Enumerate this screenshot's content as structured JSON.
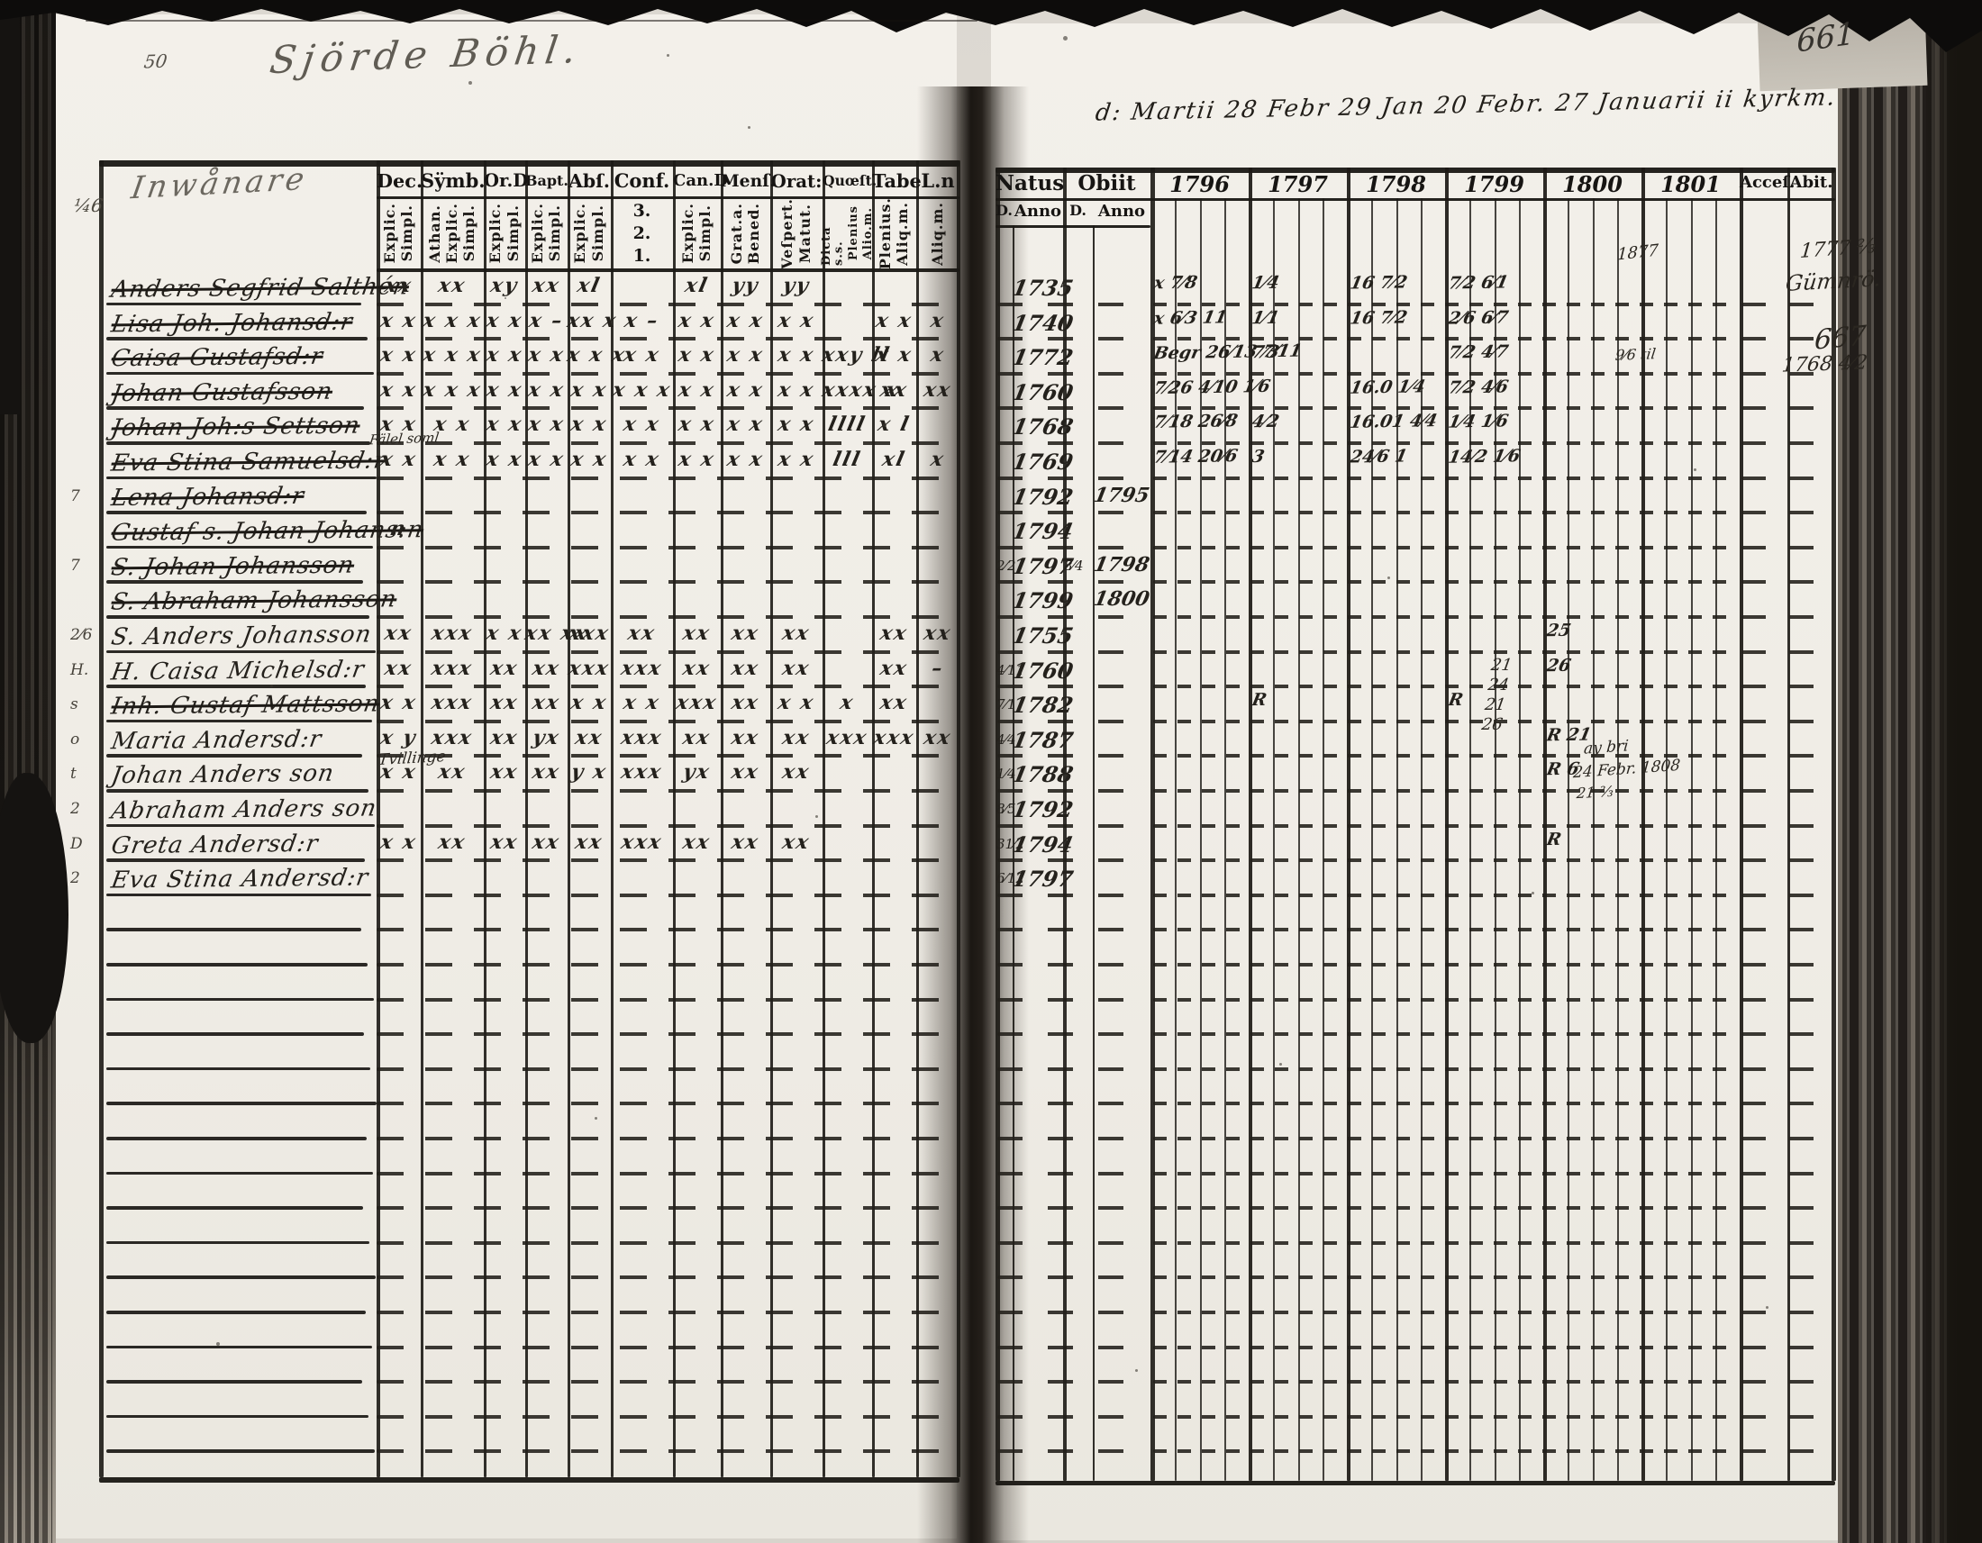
{
  "document": {
    "title_script": "Sjörde Böhl.",
    "page_number": "661",
    "years_note": "d: Martii 28 Febr 29 Jan 20 Febr. 27 Januarii ii kyrkm.",
    "name_column_script": "Inwånare"
  },
  "left_table": {
    "columns": [
      {
        "label": "Dec.",
        "sub": [
          "Explic.",
          "Simpl."
        ]
      },
      {
        "label": "Sÿmb.",
        "sub": [
          "Athan.",
          "Explic.",
          "Simpl."
        ]
      },
      {
        "label": "Or.D",
        "sub": [
          "Explic.",
          "Simpl."
        ]
      },
      {
        "label": "Bapt.",
        "sub": [
          "Explic.",
          "Simpl."
        ]
      },
      {
        "label": "Abſ.",
        "sub": [
          "Explic.",
          "Simpl."
        ]
      },
      {
        "label": "Conf.",
        "sub": [
          "3.",
          "2.",
          "1."
        ],
        "horizontal": true
      },
      {
        "label": "Can.D",
        "sub": [
          "Explic.",
          "Simpl."
        ]
      },
      {
        "label": "Menſ.",
        "sub": [
          "Grat.a.",
          "Bened."
        ]
      },
      {
        "label": "Orat:",
        "sub": [
          "Veſpert.",
          "Matut."
        ]
      },
      {
        "label": "Quœſt.",
        "sub": [
          "Dicta s.s.",
          "Plenius",
          "Alio.m."
        ]
      },
      {
        "label": "Tabe",
        "sub": [
          "Plenius.",
          "Aliq.m."
        ]
      },
      {
        "label": "L.n",
        "sub": [
          "Aliq.m."
        ]
      }
    ],
    "rows": [
      {
        "name": "Anders Segfrid Salthén",
        "struck": true,
        "tag": "",
        "marks": [
          "xx",
          "xx",
          "xy",
          "xx",
          "xl",
          "",
          "xl",
          "yy",
          "yy",
          "",
          "",
          ""
        ]
      },
      {
        "name": "Lisa Joh. Johansd:r",
        "struck": true,
        "tag": "",
        "marks": [
          "x x",
          "x x x",
          "x x",
          "x –",
          "xx x",
          "x –",
          "x x",
          "x x",
          "x x",
          "",
          "x x",
          "x"
        ]
      },
      {
        "name": "Caisa Gustafsd:r",
        "struck": true,
        "tag": "",
        "marks": [
          "x x",
          "x x x",
          "x x",
          "x x",
          "x x x",
          "x x",
          "x x",
          "x x",
          "x x",
          "xxy ll",
          "x x",
          "x"
        ]
      },
      {
        "name": "Johan Gustafsson",
        "struck": true,
        "tag": "",
        "marks": [
          "x x",
          "x x x",
          "x x",
          "x x",
          "x x",
          "x x x",
          "x x",
          "x x",
          "x x",
          "xxxx x",
          "xx",
          "xx"
        ]
      },
      {
        "name": "Johan Joh:s Settson",
        "struck": true,
        "tag": "",
        "marks": [
          "x x",
          "x x",
          "x x",
          "x x",
          "x x",
          "x x",
          "x x",
          "x x",
          "x x",
          "llll",
          "x l",
          ""
        ]
      },
      {
        "name": "Eva Stina Samuelsd:r",
        "struck": true,
        "tag": "",
        "marks": [
          "x x",
          "x x",
          "x x",
          "x x",
          "x x",
          "x x",
          "x x",
          "x x",
          "x x",
          "lll",
          "xl",
          "x"
        ]
      },
      {
        "name": "Lena Johansd:r",
        "struck": true,
        "tag": "7",
        "marks": [
          "",
          "",
          "",
          "",
          "",
          "",
          "",
          "",
          "",
          "",
          "",
          ""
        ]
      },
      {
        "name": "Gustaf s. Johan Johans:n",
        "struck": true,
        "tag": "",
        "marks": [
          "n",
          "",
          "",
          "",
          "",
          "",
          "",
          "",
          "",
          "",
          "",
          ""
        ]
      },
      {
        "name": "S. Johan Johansson",
        "struck": true,
        "tag": "7",
        "marks": [
          "",
          "",
          "",
          "",
          "",
          "",
          "",
          "",
          "",
          "",
          "",
          ""
        ]
      },
      {
        "name": "S. Abraham Johansson",
        "struck": true,
        "tag": "",
        "marks": [
          "",
          "",
          "",
          "",
          "",
          "",
          "",
          "",
          "",
          "",
          "",
          ""
        ]
      },
      {
        "name": "S. Anders Johansson",
        "struck": false,
        "tag": "2⁄6",
        "marks": [
          "xx",
          "xxx",
          "x x",
          "xx xx",
          "xxx",
          "xx",
          "xx",
          "xx",
          "xx",
          "",
          "xx",
          "xx"
        ]
      },
      {
        "name": "H. Caisa Michelsd:r",
        "struck": false,
        "tag": "H.",
        "marks": [
          "xx",
          "xxx",
          "xx",
          "xx",
          "xxx",
          "xxx",
          "xx",
          "xx",
          "xx",
          "",
          "xx",
          "–"
        ]
      },
      {
        "name": "Inh. Gustaf Mattsson",
        "struck": true,
        "tag": "s",
        "marks": [
          "x x",
          "xxx",
          "xx",
          "xx",
          "x x",
          "x x",
          "xxx",
          "xx",
          "x x",
          "x",
          "xx",
          ""
        ]
      },
      {
        "name": "Maria Andersd:r",
        "struck": false,
        "tag": "o",
        "marks": [
          "x y",
          "xxx",
          "xx",
          "yx",
          "xx",
          "xxx",
          "xx",
          "xx",
          "xx",
          "xxx",
          "xxx",
          "xx"
        ]
      },
      {
        "name": "Johan Anders son",
        "struck": false,
        "tag": "t",
        "marks": [
          "x x",
          "xx",
          "xx",
          "xx",
          "y x",
          "xxx",
          "yx",
          "xx",
          "xx",
          "",
          "",
          ""
        ]
      },
      {
        "name": "Abraham Anders son",
        "struck": false,
        "tag": "2",
        "marks": [
          "",
          "",
          "",
          "",
          "",
          "",
          "",
          "",
          "",
          "",
          "",
          ""
        ]
      },
      {
        "name": "Greta Andersd:r",
        "struck": false,
        "tag": "D",
        "marks": [
          "x x",
          "xx",
          "xx",
          "xx",
          "xx",
          "xxx",
          "xx",
          "xx",
          "xx",
          "",
          "",
          ""
        ]
      },
      {
        "name": "Eva Stina Andersd:r",
        "struck": false,
        "tag": "2",
        "marks": [
          "",
          "",
          "",
          "",
          "",
          "",
          "",
          "",
          "",
          "",
          "",
          ""
        ]
      }
    ]
  },
  "right_table": {
    "natus": {
      "label": "Natus",
      "d": "D.",
      "anno": "Anno"
    },
    "obiit": {
      "label": "Obiit",
      "d": "D.",
      "anno": "Anno"
    },
    "years": [
      "1796",
      "1797",
      "1798",
      "1799",
      "1800",
      "1801"
    ],
    "accessit": "Acceſ.",
    "abit": "Abit.",
    "rows": [
      {
        "natus_d": "",
        "natus_anno": "1735",
        "obiit_d": "",
        "obiit_anno": "",
        "year_marks": {
          "0": "x 7⁄8",
          "1": "1⁄4",
          "2": "16 7⁄2",
          "3": "7⁄2 6⁄1"
        }
      },
      {
        "natus_d": "",
        "natus_anno": "1740",
        "obiit_d": "",
        "obiit_anno": "",
        "year_marks": {
          "0": "x 6⁄3 11",
          "1": "1⁄1",
          "2": "16 7⁄2",
          "3": "2⁄6 6⁄7"
        }
      },
      {
        "natus_d": "",
        "natus_anno": "1772",
        "obiit_d": "",
        "obiit_anno": "",
        "year_marks": {
          "0": "Begr 26⁄13 7⁄11",
          "1": "7⁄3",
          "3": "7⁄2 4⁄7"
        }
      },
      {
        "natus_d": "",
        "natus_anno": "1760",
        "obiit_d": "",
        "obiit_anno": "",
        "year_marks": {
          "0": "7⁄26 4⁄10 1⁄6",
          "2": "16.0 1⁄4",
          "3": "7⁄2 4⁄6"
        }
      },
      {
        "natus_d": "",
        "natus_anno": "1768",
        "obiit_d": "",
        "obiit_anno": "",
        "year_marks": {
          "0": "7⁄18 26⁄8",
          "1": "4⁄2",
          "2": "16.01 4⁄4",
          "3": "1⁄4 1⁄6"
        }
      },
      {
        "natus_d": "",
        "natus_anno": "1769",
        "obiit_d": "",
        "obiit_anno": "",
        "year_marks": {
          "0": "7⁄14 20⁄6",
          "1": "3",
          "2": "24⁄6 1",
          "3": "14⁄2 1⁄6"
        }
      },
      {
        "natus_d": "",
        "natus_anno": "1792",
        "obiit_d": "",
        "obiit_anno": "1795",
        "year_marks": {}
      },
      {
        "natus_d": "",
        "natus_anno": "1794",
        "obiit_d": "",
        "obiit_anno": "",
        "year_marks": {}
      },
      {
        "natus_d": "2⁄2",
        "natus_anno": "1797",
        "obiit_d": "8⁄4",
        "obiit_anno": "1798",
        "year_marks": {}
      },
      {
        "natus_d": "",
        "natus_anno": "1799",
        "obiit_d": "",
        "obiit_anno": "1800",
        "year_marks": {}
      },
      {
        "natus_d": "",
        "natus_anno": "1755",
        "obiit_d": "",
        "obiit_anno": "",
        "year_marks": {
          "4": "25"
        }
      },
      {
        "natus_d": "4⁄11",
        "natus_anno": "1760",
        "obiit_d": "",
        "obiit_anno": "",
        "year_marks": {
          "4": "26"
        }
      },
      {
        "natus_d": "7⁄1",
        "natus_anno": "1782",
        "obiit_d": "",
        "obiit_anno": "",
        "year_marks": {
          "1": "R",
          "3": "R"
        }
      },
      {
        "natus_d": "4⁄4",
        "natus_anno": "1787",
        "obiit_d": "",
        "obiit_anno": "",
        "year_marks": {
          "4": "R 21"
        }
      },
      {
        "natus_d": "1⁄4",
        "natus_anno": "1788",
        "obiit_d": "",
        "obiit_anno": "",
        "year_marks": {
          "4": "R 6"
        }
      },
      {
        "natus_d": "8⁄5",
        "natus_anno": "1792",
        "obiit_d": "",
        "obiit_anno": "",
        "year_marks": {}
      },
      {
        "natus_d": "31⁄2",
        "natus_anno": "1794",
        "obiit_d": "",
        "obiit_anno": "",
        "year_marks": {
          "4": "R"
        }
      },
      {
        "natus_d": "6⁄12",
        "natus_anno": "1797",
        "obiit_d": "",
        "obiit_anno": "",
        "year_marks": {}
      }
    ]
  },
  "marginalia": [
    {
      "text": "50"
    },
    {
      "text": "¼6"
    },
    {
      "text": "Fälel soml"
    },
    {
      "text": "Tvillinge"
    },
    {
      "text": "1777 ⅔"
    },
    {
      "text": "Gümnrö."
    },
    {
      "text": "667"
    },
    {
      "text": "1768 4⁄2"
    },
    {
      "text": "21 24 21 26"
    },
    {
      "text": "ay bri"
    },
    {
      "text": "24 Febr. 1808"
    },
    {
      "text": "21 ⅔"
    },
    {
      "text": "1877"
    },
    {
      "text": "9⁄6 til"
    }
  ]
}
